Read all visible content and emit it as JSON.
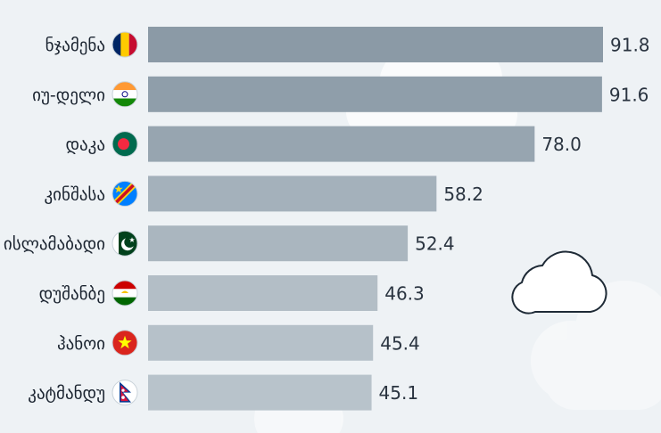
{
  "chart_data": {
    "type": "bar",
    "orientation": "horizontal",
    "title": "",
    "xlabel": "",
    "ylabel": "",
    "grid": false,
    "xlim": [
      0,
      91.8
    ],
    "categories": [
      "ნჯამენა",
      "იუ-დელი",
      "დაკა",
      "კინშასა",
      "ისლამაბადი",
      "დუშანბე",
      "ჰანოი",
      "კატმანდუ"
    ],
    "values": [
      91.8,
      91.6,
      78.0,
      58.2,
      52.4,
      46.3,
      45.4,
      45.1
    ],
    "value_labels": [
      "91.8",
      "91.6",
      "78.0",
      "58.2",
      "52.4",
      "46.3",
      "45.4",
      "45.1"
    ],
    "flags": [
      "chad-flag",
      "india-flag",
      "bangladesh-flag",
      "dr-congo-flag",
      "pakistan-flag",
      "tajikistan-flag",
      "vietnam-flag",
      "nepal-flag"
    ],
    "bar_colors": [
      "#8b9aa6",
      "#8f9eaa",
      "#97a5b0",
      "#a4b1bb",
      "#aab6bf",
      "#b3bec6",
      "#b6c1c9",
      "#b8c3cb"
    ],
    "label_color": "#1b2430",
    "value_color": "#2a3440"
  }
}
